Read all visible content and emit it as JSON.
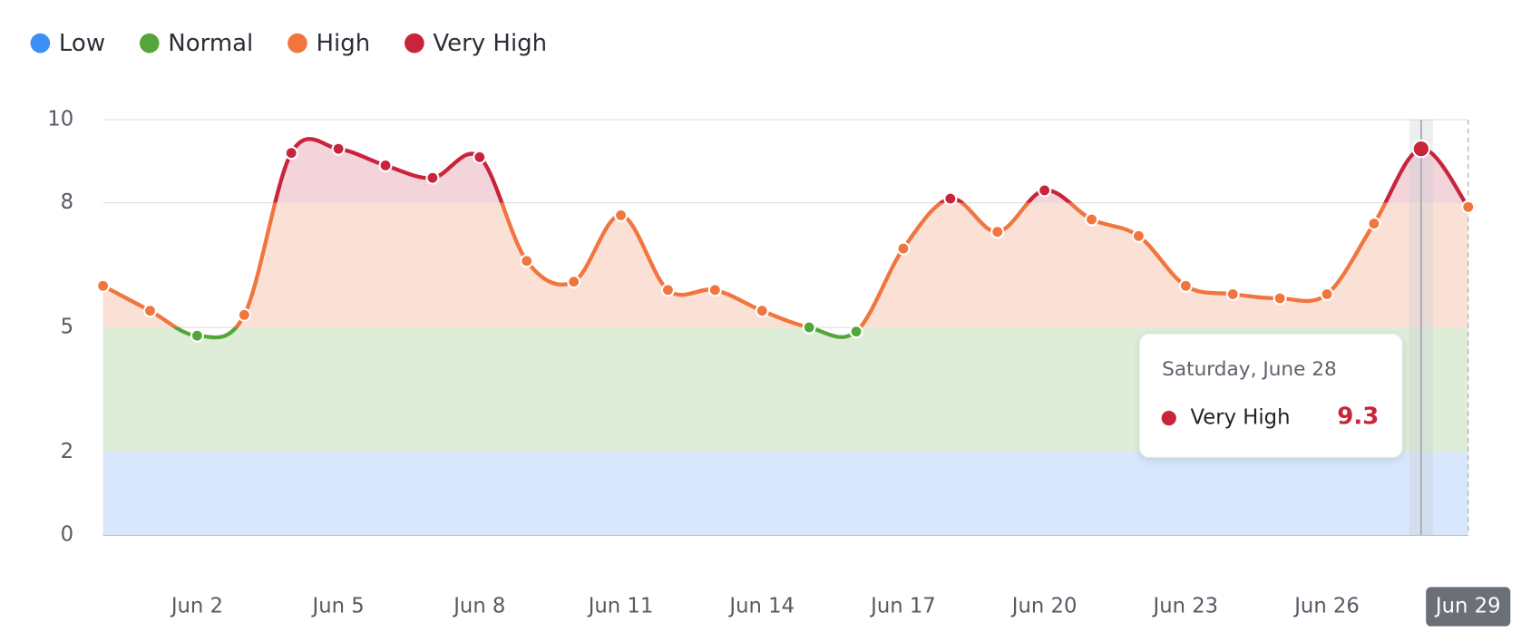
{
  "chart_data": {
    "type": "line",
    "bands": [
      {
        "name": "Low",
        "from": 0,
        "to": 2,
        "color": "#3b8ff5",
        "fill": "#d8e7fc"
      },
      {
        "name": "Normal",
        "from": 2,
        "to": 5,
        "color": "#55a63a",
        "fill": "#deedd8"
      },
      {
        "name": "High",
        "from": 5,
        "to": 8,
        "color": "#f0753f",
        "fill": "#fbe0d6"
      },
      {
        "name": "Very High",
        "from": 8,
        "to": 10,
        "color": "#c8243a",
        "fill": "#f3d4db"
      }
    ],
    "categories": [
      null,
      null,
      "Jun 2",
      null,
      null,
      "Jun 5",
      null,
      null,
      "Jun 8",
      null,
      null,
      "Jun 11",
      null,
      null,
      "Jun 14",
      null,
      null,
      "Jun 17",
      null,
      null,
      "Jun 20",
      null,
      null,
      "Jun 23",
      null,
      null,
      "Jun 26",
      null,
      null,
      "Jun 29"
    ],
    "values": [
      6.0,
      5.4,
      4.8,
      5.3,
      9.2,
      9.3,
      8.9,
      8.6,
      9.1,
      6.6,
      6.1,
      7.7,
      5.9,
      5.9,
      5.4,
      5.0,
      4.9,
      6.9,
      8.1,
      7.3,
      8.3,
      7.6,
      7.2,
      6.0,
      5.8,
      5.7,
      5.8,
      7.5,
      9.3,
      7.9
    ],
    "ylim": [
      0,
      10
    ],
    "yticks": [
      0,
      2,
      5,
      8,
      10
    ],
    "grid": true,
    "tooltip": {
      "title": "Saturday, June 28"
    }
  }
}
